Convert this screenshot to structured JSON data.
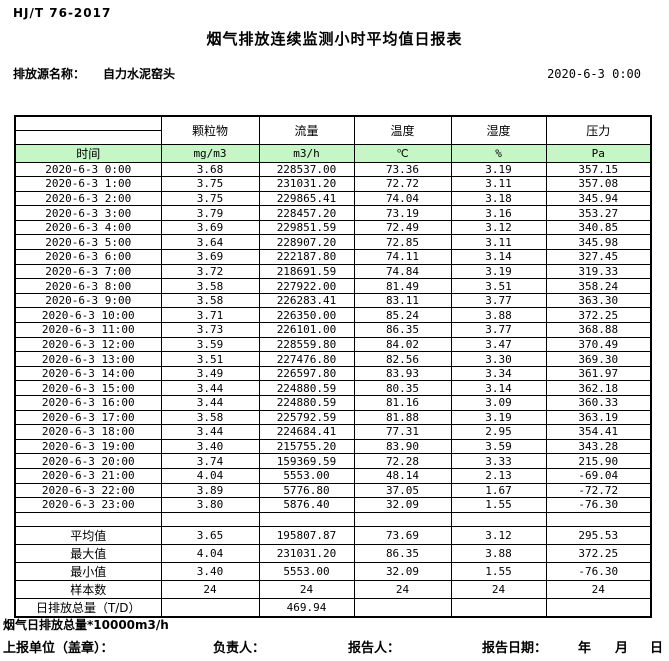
{
  "header": {
    "standard": "HJ/T  76-2017",
    "title": "烟气排放连续监测小时平均值日报表",
    "source_label": "排放源名称：",
    "source_name": "自力水泥窑头",
    "datetime": "2020-6-3 0:00"
  },
  "table": {
    "time_header": "时间",
    "columns": [
      {
        "name": "颗粒物",
        "unit": "mg/m3"
      },
      {
        "name": "流量",
        "unit": "m3/h"
      },
      {
        "name": "温度",
        "unit": "℃"
      },
      {
        "name": "湿度",
        "unit": "%"
      },
      {
        "name": "压力",
        "unit": "Pa"
      }
    ],
    "rows": [
      [
        "2020-6-3 0:00",
        "3.68",
        "228537.00",
        "73.36",
        "3.19",
        "357.15"
      ],
      [
        "2020-6-3 1:00",
        "3.75",
        "231031.20",
        "72.72",
        "3.11",
        "357.08"
      ],
      [
        "2020-6-3 2:00",
        "3.75",
        "229865.41",
        "74.04",
        "3.18",
        "345.94"
      ],
      [
        "2020-6-3 3:00",
        "3.79",
        "228457.20",
        "73.19",
        "3.16",
        "353.27"
      ],
      [
        "2020-6-3 4:00",
        "3.69",
        "229851.59",
        "72.49",
        "3.12",
        "340.85"
      ],
      [
        "2020-6-3 5:00",
        "3.64",
        "228907.20",
        "72.85",
        "3.11",
        "345.98"
      ],
      [
        "2020-6-3 6:00",
        "3.69",
        "222187.80",
        "74.11",
        "3.14",
        "327.45"
      ],
      [
        "2020-6-3 7:00",
        "3.72",
        "218691.59",
        "74.84",
        "3.19",
        "319.33"
      ],
      [
        "2020-6-3 8:00",
        "3.58",
        "227922.00",
        "81.49",
        "3.51",
        "358.24"
      ],
      [
        "2020-6-3 9:00",
        "3.58",
        "226283.41",
        "83.11",
        "3.77",
        "363.30"
      ],
      [
        "2020-6-3 10:00",
        "3.71",
        "226350.00",
        "85.24",
        "3.88",
        "372.25"
      ],
      [
        "2020-6-3 11:00",
        "3.73",
        "226101.00",
        "86.35",
        "3.77",
        "368.88"
      ],
      [
        "2020-6-3 12:00",
        "3.59",
        "228559.80",
        "84.02",
        "3.47",
        "370.49"
      ],
      [
        "2020-6-3 13:00",
        "3.51",
        "227476.80",
        "82.56",
        "3.30",
        "369.30"
      ],
      [
        "2020-6-3 14:00",
        "3.49",
        "226597.80",
        "83.93",
        "3.34",
        "361.97"
      ],
      [
        "2020-6-3 15:00",
        "3.44",
        "224880.59",
        "80.35",
        "3.14",
        "362.18"
      ],
      [
        "2020-6-3 16:00",
        "3.44",
        "224880.59",
        "81.16",
        "3.09",
        "360.33"
      ],
      [
        "2020-6-3 17:00",
        "3.58",
        "225792.59",
        "81.88",
        "3.19",
        "363.19"
      ],
      [
        "2020-6-3 18:00",
        "3.44",
        "224684.41",
        "77.31",
        "2.95",
        "354.41"
      ],
      [
        "2020-6-3 19:00",
        "3.40",
        "215755.20",
        "83.90",
        "3.59",
        "343.28"
      ],
      [
        "2020-6-3 20:00",
        "3.74",
        "159369.59",
        "72.28",
        "3.33",
        "215.90"
      ],
      [
        "2020-6-3 21:00",
        "4.04",
        "5553.00",
        "48.14",
        "2.13",
        "-69.04"
      ],
      [
        "2020-6-3 22:00",
        "3.89",
        "5776.80",
        "37.05",
        "1.67",
        "-72.72"
      ],
      [
        "2020-6-3 23:00",
        "3.80",
        "5876.40",
        "32.09",
        "1.55",
        "-76.30"
      ]
    ],
    "summary_rows": [
      {
        "label": "",
        "values": [
          "",
          "",
          "",
          "",
          ""
        ]
      },
      {
        "label": "平均值",
        "values": [
          "3.65",
          "195807.87",
          "73.69",
          "3.12",
          "295.53"
        ]
      },
      {
        "label": "最大值",
        "values": [
          "4.04",
          "231031.20",
          "86.35",
          "3.88",
          "372.25"
        ]
      },
      {
        "label": "最小值",
        "values": [
          "3.40",
          "5553.00",
          "32.09",
          "1.55",
          "-76.30"
        ]
      },
      {
        "label": "样本数",
        "values": [
          "24",
          "24",
          "24",
          "24",
          "24"
        ]
      },
      {
        "label": "日排放总量（T/D）",
        "values": [
          "",
          "469.94",
          "",
          "",
          ""
        ]
      }
    ]
  },
  "footer": {
    "note": "烟气日排放总量*10000m3/h",
    "report_unit_label": "上报单位（盖章）：",
    "responsible_label": "负责人：",
    "reporter_label": "报告人：",
    "report_date_label": "报告日期：",
    "year_label": "年",
    "month_label": "月",
    "day_label": "日"
  },
  "colors": {
    "header_row_green": "#C6F6C6",
    "border": "#000000"
  }
}
